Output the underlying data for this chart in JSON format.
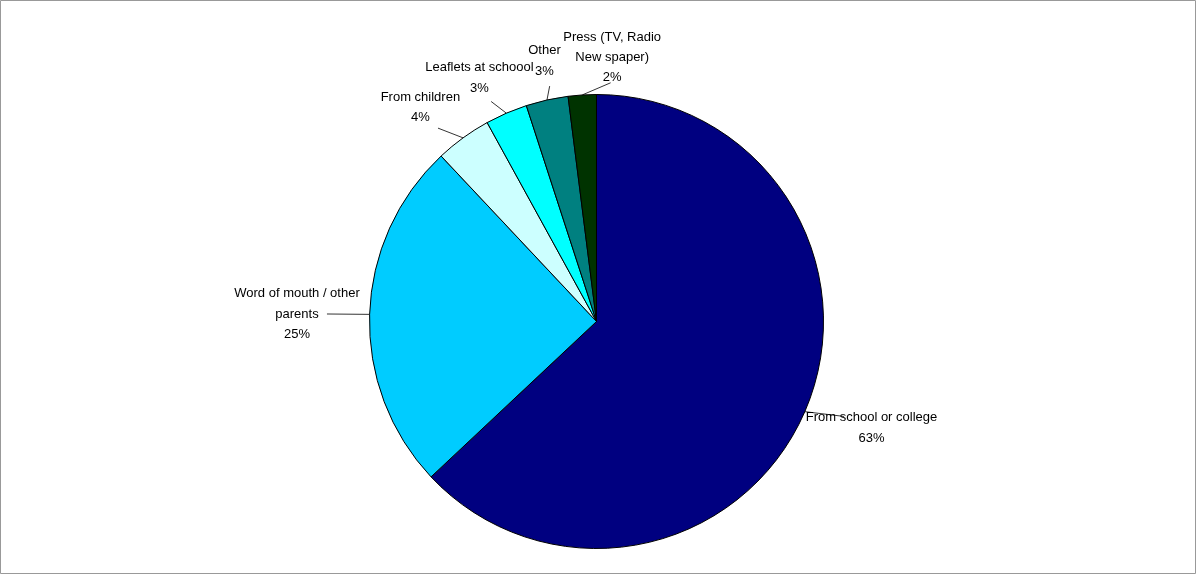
{
  "chart_data": {
    "type": "pie",
    "categories": [
      "From school or college",
      "Word of mouth / other\nparents",
      "From children",
      "Leaflets at schoool",
      "Other",
      "Press (TV, Radio\nNew spaper)"
    ],
    "values": [
      63,
      25,
      4,
      3,
      3,
      2
    ],
    "value_labels": [
      "63%",
      "25%",
      "4%",
      "3%",
      "3%",
      "2%"
    ],
    "colors": [
      "#000080",
      "#00ccff",
      "#ccffff",
      "#00ffff",
      "#008080",
      "#003300"
    ]
  }
}
